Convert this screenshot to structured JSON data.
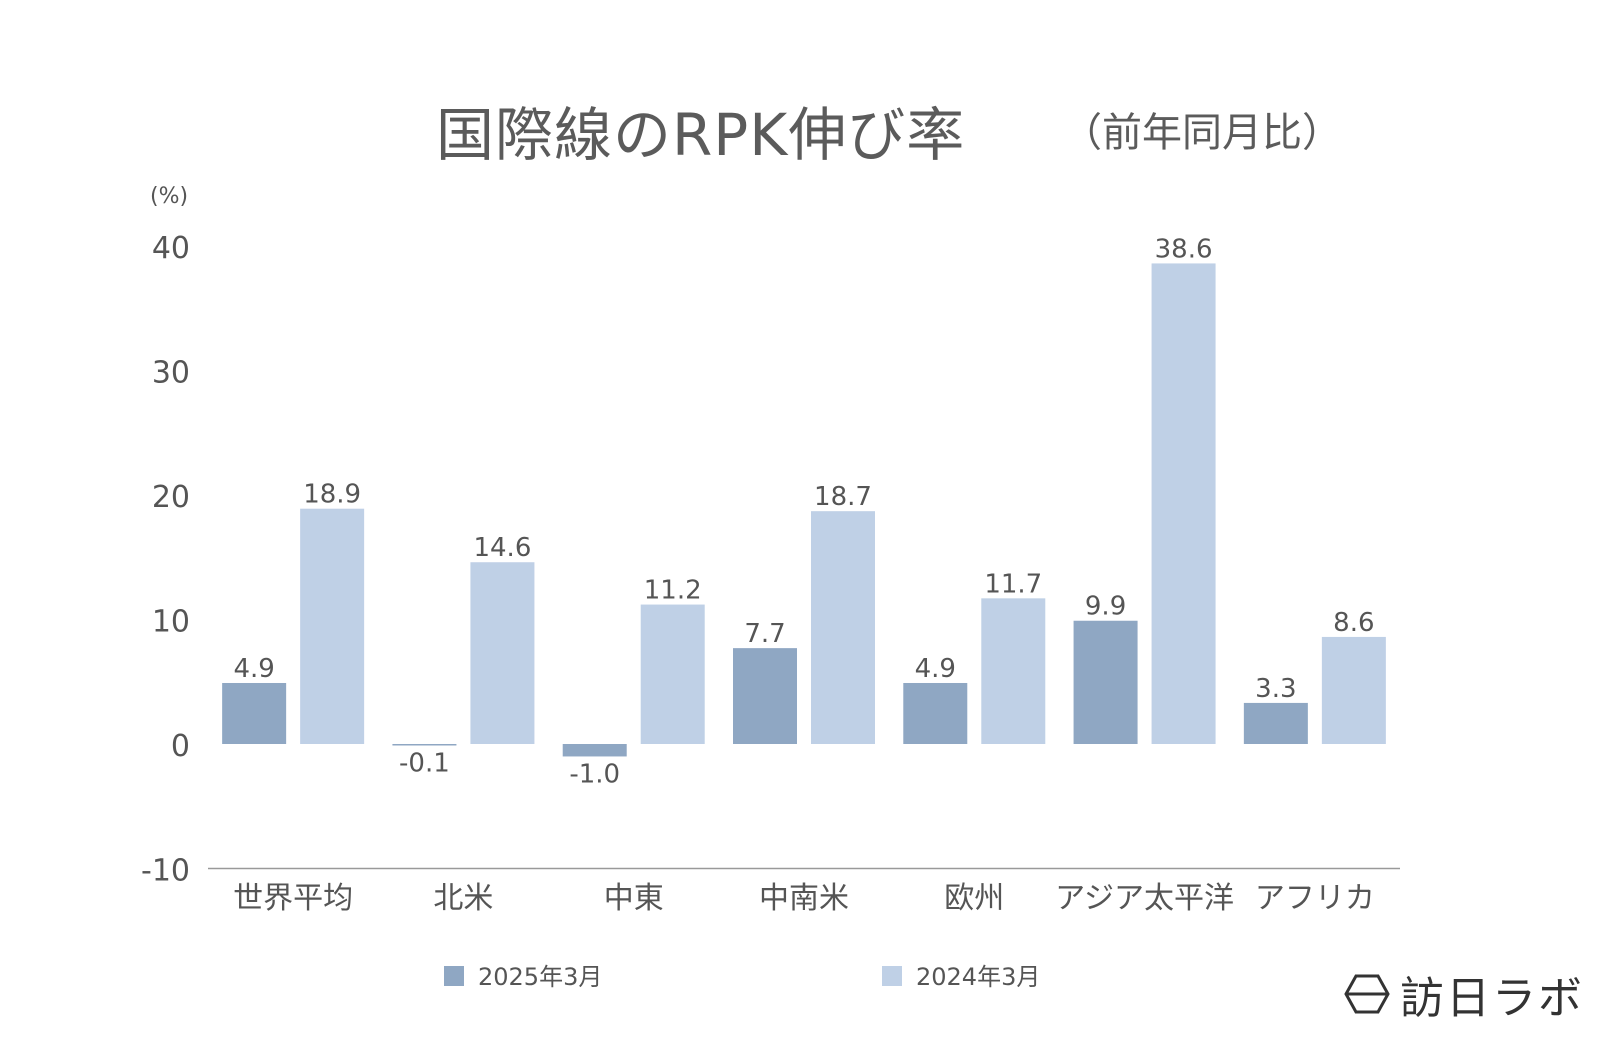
{
  "title": "国際線のRPK伸び率",
  "subtitle": "（前年同月比）",
  "brand": {
    "name": "訪日ラボ",
    "icon": "hexagon-logo-icon"
  },
  "colors": {
    "series_2025": "#8fa7c3",
    "series_2024": "#bfd0e6",
    "axis": "#999999",
    "text": "#555555"
  },
  "chart_data": {
    "type": "bar",
    "title": "国際線のRPK伸び率",
    "subtitle": "（前年同月比）",
    "ylabel": "(%)",
    "ylim": [
      -10,
      40
    ],
    "yticks": [
      40,
      30,
      20,
      10,
      0,
      -10
    ],
    "categories": [
      "世界平均",
      "北米",
      "中東",
      "中南米",
      "欧州",
      "アジア太平洋",
      "アフリカ"
    ],
    "series": [
      {
        "name": "2025年3月",
        "values": [
          4.9,
          -0.1,
          -1.0,
          7.7,
          4.9,
          9.9,
          3.3
        ],
        "labels": [
          "4.9",
          "-0.1",
          "-1.0",
          "7.7",
          "4.9",
          "9.9",
          "3.3"
        ]
      },
      {
        "name": "2024年3月",
        "values": [
          18.9,
          14.6,
          11.2,
          18.7,
          11.7,
          38.6,
          8.6
        ],
        "labels": [
          "18.9",
          "14.6",
          "11.2",
          "18.7",
          "11.7",
          "38.6",
          "8.6"
        ]
      }
    ],
    "grid": false,
    "legend": "bottom"
  }
}
